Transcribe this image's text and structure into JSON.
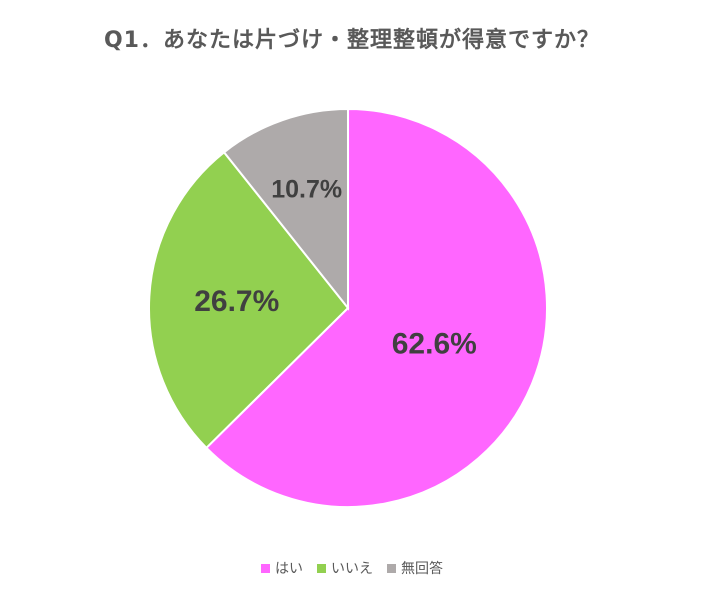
{
  "chart_data": {
    "type": "pie",
    "title": "Q1．あなたは片づけ・整理整頓が得意ですか？",
    "categories": [
      "はい",
      "いいえ",
      "無回答"
    ],
    "values": [
      62.6,
      26.7,
      10.7
    ],
    "value_labels": [
      "62.6%",
      "26.7%",
      "10.7%"
    ],
    "colors": [
      "#FF66FF",
      "#92D050",
      "#AEAAAA"
    ],
    "legend_position": "bottom",
    "start_angle": "12 o'clock, clockwise"
  }
}
